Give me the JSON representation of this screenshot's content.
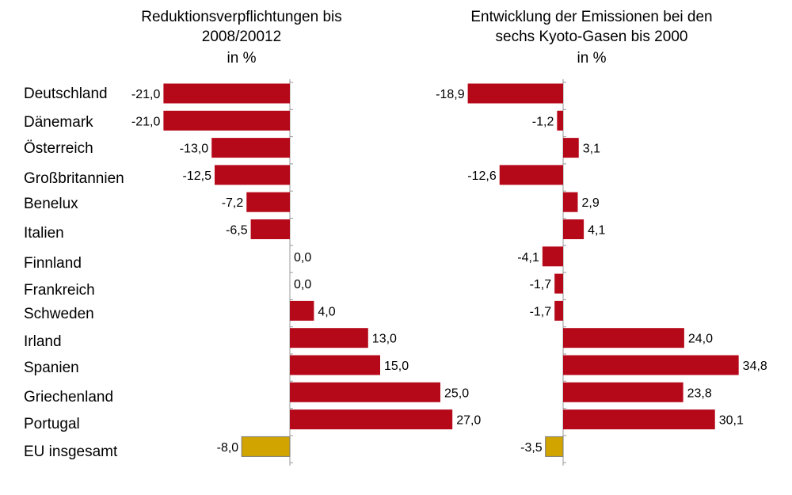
{
  "colors": {
    "bar": "#b5091a",
    "total_bar": "#d1a400",
    "axis": "#999999"
  },
  "chart_data": [
    {
      "type": "bar",
      "orientation": "horizontal",
      "title": [
        "Reduktionsverpflichtungen bis",
        "2008/20012",
        "in %"
      ],
      "categories": [
        "Deutschland",
        "Dänemark",
        "Österreich",
        "Großbritannien",
        "Benelux",
        "Italien",
        "Finnland",
        "Frankreich",
        "Schweden",
        "Irland",
        "Spanien",
        "Griechenland",
        "Portugal",
        "EU insgesamt"
      ],
      "values": [
        -21.0,
        -21.0,
        -13.0,
        -12.5,
        -7.2,
        -6.5,
        0.0,
        0.0,
        4.0,
        13.0,
        15.0,
        25.0,
        27.0,
        -8.0
      ],
      "labels": [
        "-21,0",
        "-21,0",
        "-13,0",
        "-12,5",
        "-7,2",
        "-6,5",
        "0,0",
        "0,0",
        "4,0",
        "13,0",
        "15,0",
        "25,0",
        "27,0",
        "-8,0"
      ],
      "highlight_index": 13
    },
    {
      "type": "bar",
      "orientation": "horizontal",
      "title": [
        "Entwicklung der Emissionen bei den",
        "sechs Kyoto-Gasen bis 2000",
        "in %"
      ],
      "categories": [
        "Deutschland",
        "Dänemark",
        "Österreich",
        "Großbritannien",
        "Benelux",
        "Italien",
        "Finnland",
        "Frankreich",
        "Schweden",
        "Irland",
        "Spanien",
        "Griechenland",
        "Portugal",
        "EU insgesamt"
      ],
      "values": [
        -18.9,
        -1.2,
        3.1,
        -12.6,
        2.9,
        4.1,
        -4.1,
        -1.7,
        -1.7,
        24.0,
        34.8,
        23.8,
        30.1,
        -3.5
      ],
      "labels": [
        "-18,9",
        "-1,2",
        "3,1",
        "-12,6",
        "2,9",
        "4,1",
        "-4,1",
        "-1,7",
        "-1,7",
        "24,0",
        "34,8",
        "23,8",
        "30,1",
        "-3,5"
      ],
      "highlight_index": 13
    }
  ]
}
